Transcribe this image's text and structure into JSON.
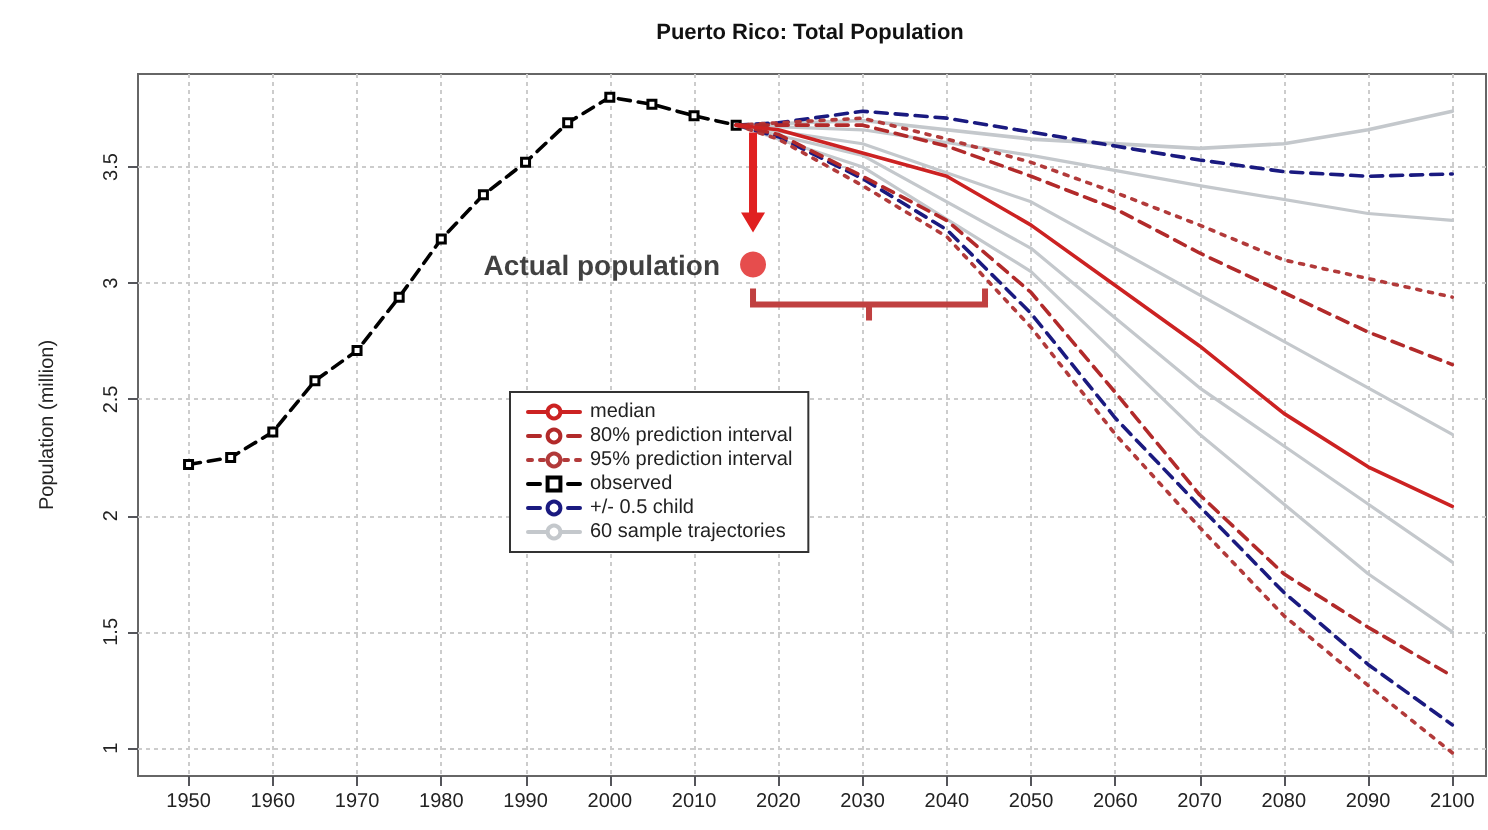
{
  "chart_data": {
    "type": "line",
    "title": "Puerto Rico: Total Population",
    "ylabel": "Population (million)",
    "xlim": [
      1944,
      2104
    ],
    "ylim": [
      0.88,
      3.9
    ],
    "xticks": [
      1950,
      1960,
      1970,
      1980,
      1990,
      2000,
      2010,
      2020,
      2030,
      2040,
      2050,
      2060,
      2070,
      2080,
      2090,
      2100
    ],
    "yticks": [
      1,
      1.5,
      2,
      2.5,
      3,
      3.5
    ],
    "grid": true,
    "legend": "center",
    "tick_labels": "xy",
    "annotations": [
      {
        "text": "Actual population",
        "x": 2017,
        "y": 3.08
      }
    ],
    "series": [
      {
        "name": "median",
        "color": "#cc2222",
        "line_style": "solid",
        "marker": "none",
        "x": [
          2015,
          2020,
          2030,
          2040,
          2050,
          2060,
          2070,
          2080,
          2090,
          2100
        ],
        "values": [
          3.68,
          3.66,
          3.56,
          3.46,
          3.25,
          2.99,
          2.73,
          2.44,
          2.21,
          2.04
        ]
      },
      {
        "name": "80% prediction interval",
        "color": "#b22a2a",
        "line_style": "dashed",
        "marker": "none",
        "x": [
          2015,
          2020,
          2030,
          2040,
          2050,
          2060,
          2070,
          2080,
          2090,
          2100
        ],
        "values": [
          3.68,
          3.68,
          3.68,
          3.59,
          3.46,
          3.32,
          3.13,
          2.96,
          2.79,
          2.65
        ]
      },
      {
        "color": "#b22a2a",
        "line_style": "dashed",
        "marker": "none",
        "x": [
          2015,
          2020,
          2030,
          2040,
          2050,
          2060,
          2070,
          2080,
          2090,
          2100
        ],
        "values": [
          3.68,
          3.64,
          3.46,
          3.27,
          2.96,
          2.53,
          2.09,
          1.75,
          1.52,
          1.31
        ]
      },
      {
        "name": "95% prediction interval",
        "color": "#b23a3a",
        "line_style": "dotted",
        "marker": "none",
        "x": [
          2015,
          2020,
          2030,
          2040,
          2050,
          2060,
          2070,
          2080,
          2090,
          2100
        ],
        "values": [
          3.68,
          3.69,
          3.71,
          3.62,
          3.52,
          3.39,
          3.25,
          3.1,
          3.02,
          2.94
        ]
      },
      {
        "color": "#b23a3a",
        "line_style": "dotted",
        "marker": "none",
        "x": [
          2015,
          2020,
          2030,
          2040,
          2050,
          2060,
          2070,
          2080,
          2090,
          2100
        ],
        "values": [
          3.68,
          3.62,
          3.42,
          3.2,
          2.81,
          2.35,
          1.95,
          1.57,
          1.27,
          0.98
        ]
      },
      {
        "name": "observed",
        "color": "#000000",
        "line_style": "dashed",
        "marker": "square",
        "x": [
          1950,
          1955,
          1960,
          1965,
          1970,
          1975,
          1980,
          1985,
          1990,
          1995,
          2000,
          2005,
          2010,
          2015
        ],
        "values": [
          2.22,
          2.25,
          2.36,
          2.58,
          2.71,
          2.94,
          3.19,
          3.38,
          3.52,
          3.69,
          3.8,
          3.77,
          3.72,
          3.68
        ]
      },
      {
        "name": "+/- 0.5 child",
        "color": "#1a1a80",
        "line_style": "dashed",
        "marker": "none",
        "x": [
          2015,
          2020,
          2030,
          2040,
          2050,
          2060,
          2070,
          2080,
          2090,
          2100
        ],
        "values": [
          3.68,
          3.69,
          3.74,
          3.71,
          3.65,
          3.59,
          3.53,
          3.48,
          3.46,
          3.47
        ]
      },
      {
        "color": "#1a1a80",
        "line_style": "dashed",
        "marker": "none",
        "x": [
          2015,
          2020,
          2030,
          2040,
          2050,
          2060,
          2070,
          2080,
          2090,
          2100
        ],
        "values": [
          3.68,
          3.63,
          3.45,
          3.23,
          2.87,
          2.42,
          2.04,
          1.67,
          1.36,
          1.1
        ]
      },
      {
        "name": "60 sample trajectories",
        "color": "#c4c8cc",
        "line_style": "solid",
        "marker": "none",
        "x": [
          2015,
          2030,
          2050,
          2070,
          2080,
          2090,
          2100
        ],
        "values": [
          3.68,
          3.7,
          3.62,
          3.58,
          3.6,
          3.66,
          3.74
        ]
      },
      {
        "color": "#c4c8cc",
        "line_style": "solid",
        "marker": "none",
        "x": [
          2015,
          2030,
          2050,
          2070,
          2090,
          2100
        ],
        "values": [
          3.68,
          3.66,
          3.55,
          3.42,
          3.3,
          3.27
        ]
      },
      {
        "color": "#c4c8cc",
        "line_style": "solid",
        "marker": "none",
        "x": [
          2015,
          2030,
          2050,
          2070,
          2090,
          2100
        ],
        "values": [
          3.68,
          3.6,
          3.35,
          2.95,
          2.55,
          2.35
        ]
      },
      {
        "color": "#c4c8cc",
        "line_style": "solid",
        "marker": "none",
        "x": [
          2015,
          2030,
          2050,
          2070,
          2090,
          2100
        ],
        "values": [
          3.68,
          3.55,
          3.15,
          2.55,
          2.05,
          1.8
        ]
      },
      {
        "color": "#c4c8cc",
        "line_style": "solid",
        "marker": "none",
        "x": [
          2015,
          2030,
          2050,
          2070,
          2090,
          2100
        ],
        "values": [
          3.68,
          3.5,
          3.05,
          2.35,
          1.75,
          1.5
        ]
      }
    ]
  }
}
